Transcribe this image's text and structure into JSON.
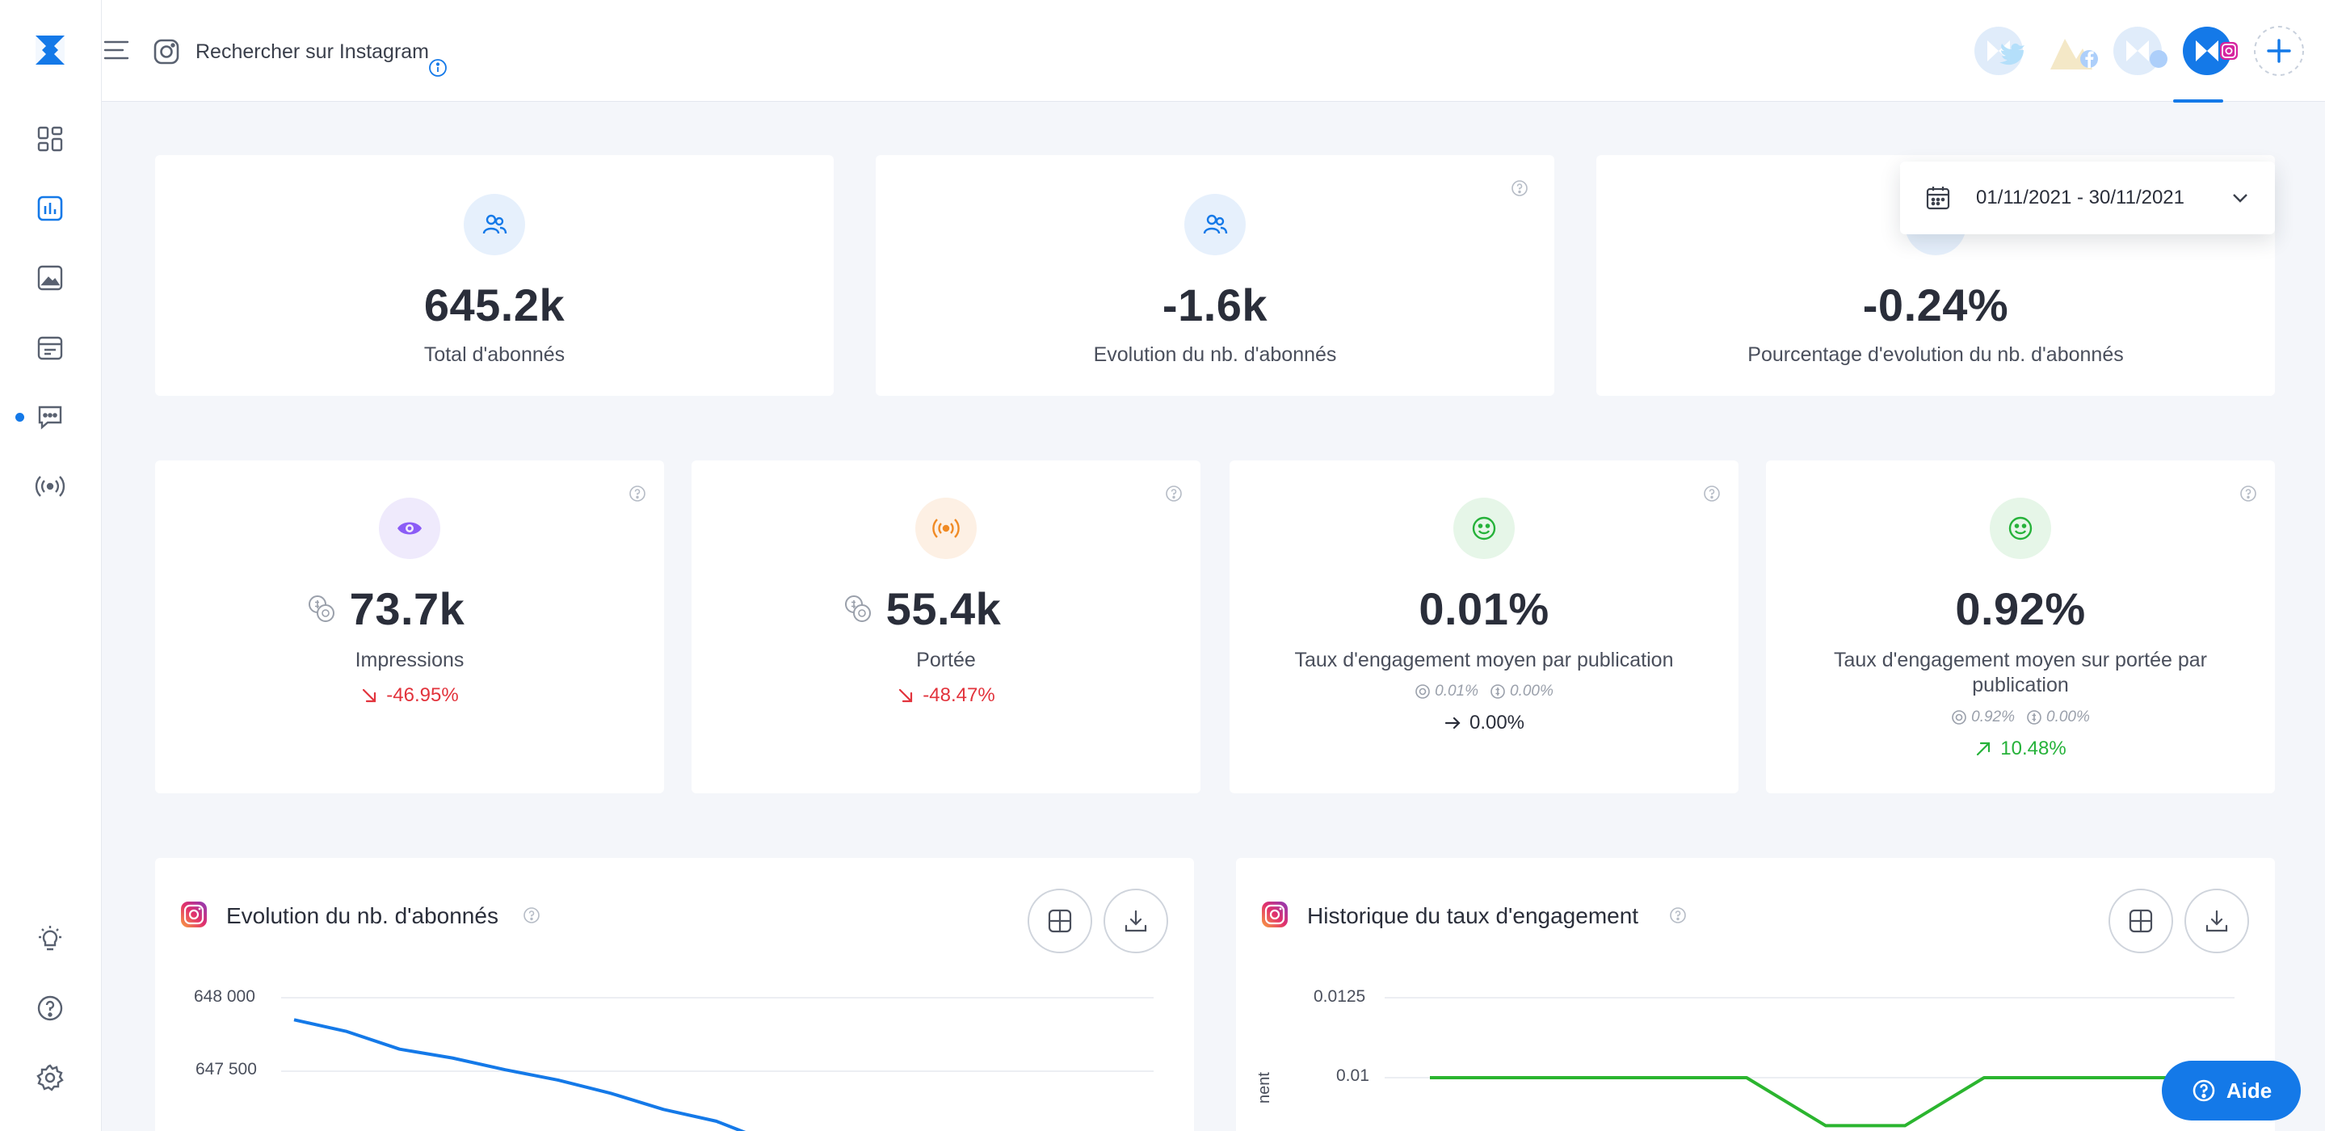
{
  "search": {
    "placeholder": "Rechercher sur Instagram"
  },
  "date_range": "01/11/2021 - 30/11/2021",
  "top_stats": [
    {
      "value": "645.2k",
      "label": "Total d'abonnés"
    },
    {
      "value": "-1.6k",
      "label": "Evolution du nb. d'abonnés"
    },
    {
      "value": "-0.24%",
      "label": "Pourcentage d'evolution du nb. d'abonnés"
    }
  ],
  "stats": [
    {
      "value": "73.7k",
      "label": "Impressions",
      "delta": "-46.95%",
      "delta_color": "#e2333c"
    },
    {
      "value": "55.4k",
      "label": "Portée",
      "delta": "-48.47%",
      "delta_color": "#e2333c"
    },
    {
      "value": "0.01%",
      "label": "Taux d'engagement moyen par publication",
      "sub_organic": "0.01%",
      "sub_paid": "0.00%",
      "delta": "0.00%",
      "delta_color": "#2a2e3a"
    },
    {
      "value": "0.92%",
      "label": "Taux d'engagement moyen sur portée par publication",
      "sub_organic": "0.92%",
      "sub_paid": "0.00%",
      "delta": "10.48%",
      "delta_color": "#26b23a"
    }
  ],
  "charts": [
    {
      "title": "Evolution du nb. d'abonnés",
      "chart_data": {
        "type": "line",
        "yticks": [
          "648 000",
          "647 500"
        ],
        "series": [
          {
            "color": "#1479e8",
            "values": [
              647850,
              647770,
              647650,
              647590,
              647510,
              647440,
              647350,
              647240,
              647160,
              647020
            ]
          }
        ]
      }
    },
    {
      "title": "Historique du taux d'engagement",
      "y_axis_partial": "nent",
      "chart_data": {
        "type": "line",
        "yticks": [
          "0.0125",
          "0.01"
        ],
        "series": [
          {
            "color": "#2bb52f",
            "values": [
              0.01,
              0.01,
              0.01,
              0.01,
              0.01,
              0.0085,
              0.0085,
              0.01,
              0.01,
              0.01,
              0.01
            ]
          }
        ]
      }
    }
  ],
  "help_button": "Aide",
  "colors": {
    "accent": "#1479e8",
    "negative": "#e2333c",
    "positive": "#26b23a"
  }
}
